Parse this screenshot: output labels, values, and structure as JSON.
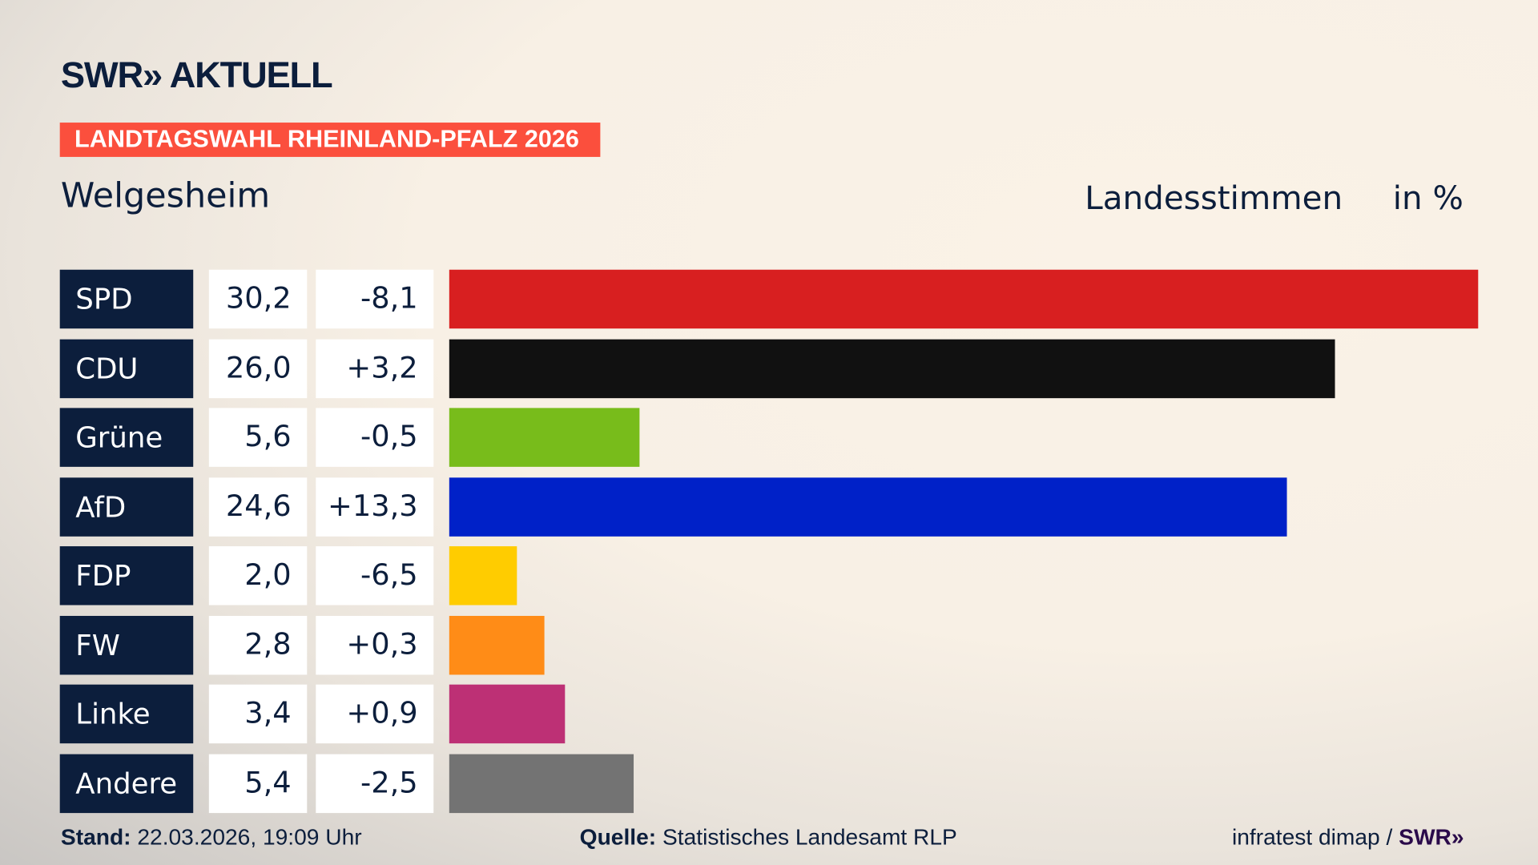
{
  "brand": {
    "logo": "SWR» AKTUELL"
  },
  "tag": "LANDTAGSWAHL RHEINLAND-PFALZ 2026",
  "location": "Welgesheim",
  "header": {
    "measure": "Landesstimmen",
    "unit": "in %"
  },
  "chart_data": {
    "type": "bar",
    "orientation": "horizontal",
    "categories": [
      "SPD",
      "CDU",
      "Grüne",
      "AfD",
      "FDP",
      "FW",
      "Linke",
      "Andere"
    ],
    "values": [
      30.2,
      26.0,
      5.6,
      24.6,
      2.0,
      2.8,
      3.4,
      5.4
    ],
    "value_labels": [
      "30,2",
      "26,0",
      "5,6",
      "24,6",
      "2,0",
      "2,8",
      "3,4",
      "5,4"
    ],
    "changes": [
      -8.1,
      3.2,
      -0.5,
      13.3,
      -6.5,
      0.3,
      0.9,
      -2.5
    ],
    "change_labels": [
      "-8,1",
      "+3,2",
      "-0,5",
      "+13,3",
      "-6,5",
      "+0,3",
      "+0,9",
      "-2,5"
    ],
    "colors": [
      "#d81f20",
      "#111111",
      "#78bc1b",
      "#0021c8",
      "#ffcc00",
      "#ff8c17",
      "#bd3075",
      "#737373"
    ]
  },
  "footer": {
    "stand_label": "Stand:",
    "stand_value": "22.03.2026, 19:09 Uhr",
    "source_label": "Quelle:",
    "source_value": "Statistisches Landesamt RLP",
    "credit": "infratest dimap / ",
    "credit_brand": "SWR»"
  }
}
